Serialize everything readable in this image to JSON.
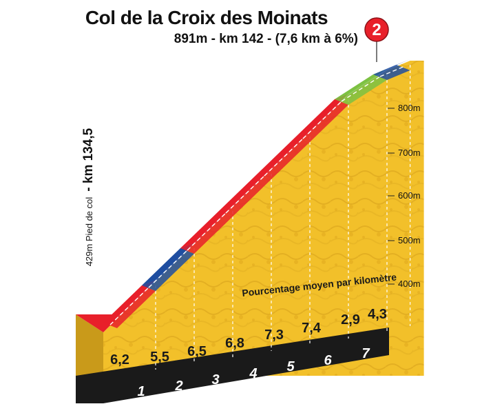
{
  "header": {
    "title": "Col de la Croix des Moinats",
    "subtitle": "891m - km 142 - (7,6 km à 6%)",
    "badge": "2"
  },
  "side": {
    "foot_label": "429m   Pied de col",
    "km_label": "- km 134,5"
  },
  "colors": {
    "red": "#e8202a",
    "blue": "#1f4ea0",
    "green": "#7dc142",
    "ground": "#f2c02a",
    "ground_dark": "#c99a1a",
    "base": "#1a1a1a"
  },
  "chart_data": {
    "type": "area",
    "title": "Col de la Croix des Moinats",
    "caption": "Pourcentage moyen par kilomètre",
    "y_ticks": [
      "800m",
      "700m",
      "600m",
      "500m",
      "400m"
    ],
    "y_tick_values": [
      800,
      700,
      600,
      500,
      400
    ],
    "start_elevation": 429,
    "summit_elevation": 891,
    "km_labels": [
      "1",
      "2",
      "3",
      "4",
      "5",
      "6",
      "7"
    ],
    "segments": [
      {
        "km": 1,
        "percent": "6,2",
        "color": "red"
      },
      {
        "km": 2,
        "percent": "5,5",
        "color": "blue"
      },
      {
        "km": 3,
        "percent": "6,5",
        "color": "red"
      },
      {
        "km": 4,
        "percent": "6,8",
        "color": "red"
      },
      {
        "km": 5,
        "percent": "7,3",
        "color": "red"
      },
      {
        "km": 6,
        "percent": "7,4",
        "color": "red"
      },
      {
        "km": 7,
        "percent": "2,9",
        "color": "green"
      },
      {
        "km": 7.6,
        "percent": "4,3",
        "color": "blue"
      }
    ]
  }
}
